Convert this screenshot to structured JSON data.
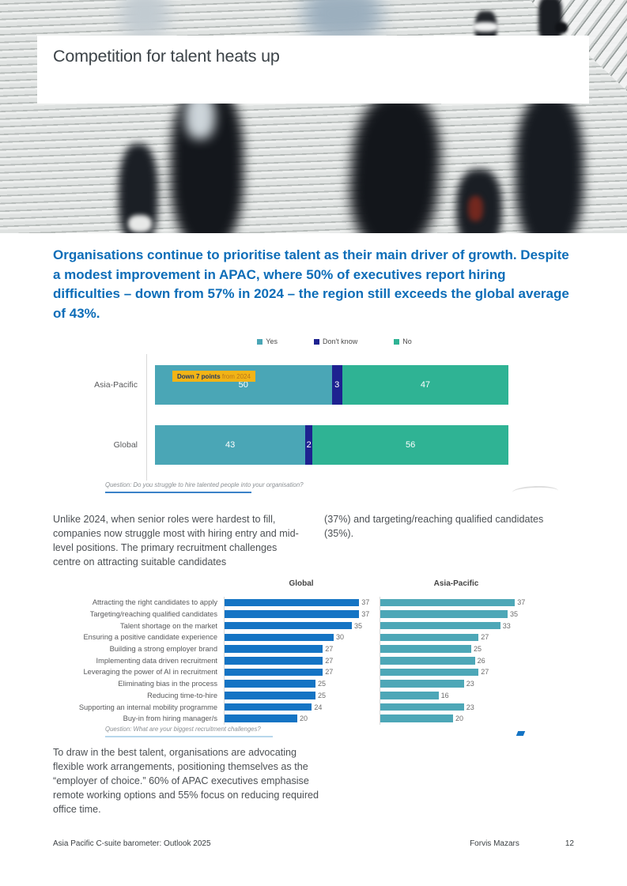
{
  "title": "Competition for talent heats up",
  "lead": "Organisations continue to prioritise talent as their main driver of growth. Despite a modest improvement in APAC, where 50% of executives report hiring difficulties – down from 57% in 2024 – the region still exceeds the global average of 43%.",
  "colors": {
    "accent_blue": "#0d6db8",
    "yes": "#4aa6b6",
    "dont_know": "#1e2290",
    "no": "#2fb394",
    "global_bar": "#1474c4",
    "apac_bar": "#4da7b7",
    "badge_bg": "#f2b416"
  },
  "chart_data": [
    {
      "type": "bar",
      "variant": "horizontal-stacked",
      "title": "",
      "categories": [
        "Asia-Pacific",
        "Global"
      ],
      "series": [
        {
          "name": "Yes",
          "color": "#4aa6b6",
          "values": [
            50,
            43
          ]
        },
        {
          "name": "Don't know",
          "color": "#1e2290",
          "values": [
            3,
            2
          ]
        },
        {
          "name": "No",
          "color": "#2fb394",
          "values": [
            47,
            56
          ]
        }
      ],
      "xlim": [
        0,
        100
      ],
      "legend_position": "top",
      "annotation": {
        "bold": "Down 7 points",
        "rest": " from 2024"
      },
      "question": "Question: Do you struggle to hire talented people into your organisation?"
    },
    {
      "type": "bar",
      "variant": "horizontal",
      "title": "Global",
      "color": "#1474c4",
      "categories": [
        "Attracting the right candidates to apply",
        "Targeting/reaching qualified candidates",
        "Talent shortage on the market",
        "Ensuring a positive candidate experience",
        "Building a strong employer brand",
        "Implementing data driven recruitment",
        "Leveraging the power of AI in recruitment",
        "Eliminating bias in the process",
        "Reducing time-to-hire",
        "Supporting an internal mobility programme",
        "Buy-in from hiring manager/s"
      ],
      "values": [
        37,
        37,
        35,
        30,
        27,
        27,
        27,
        25,
        25,
        24,
        20
      ]
    },
    {
      "type": "bar",
      "variant": "horizontal",
      "title": "Asia-Pacific",
      "color": "#4da7b7",
      "categories": [
        "Attracting the right candidates to apply",
        "Targeting/reaching qualified candidates",
        "Talent shortage on the market",
        "Ensuring a positive candidate experience",
        "Building a strong employer brand",
        "Implementing data driven recruitment",
        "Leveraging the power of AI in recruitment",
        "Eliminating bias in the process",
        "Reducing time-to-hire",
        "Supporting an internal mobility programme",
        "Buy-in from hiring manager/s"
      ],
      "values": [
        37,
        35,
        33,
        27,
        25,
        26,
        27,
        23,
        16,
        23,
        20
      ],
      "question": "Question: What are your biggest recruitment challenges?"
    }
  ],
  "body": {
    "col_left": "Unlike 2024, when senior roles were hardest to fill, companies now struggle most with hiring entry and mid-level positions. The primary recruitment challenges centre on attracting suitable candidates",
    "col_right": "(37%) and targeting/reaching qualified candidates (35%).",
    "bottom": "To draw in the best talent, organisations are advocating flexible work arrangements, positioning themselves as the “employer of choice.” 60% of APAC executives emphasise remote working options and 55% focus on reducing required office time."
  },
  "footer": {
    "left": "Asia Pacific C-suite barometer: Outlook 2025",
    "brand": "Forvis Mazars",
    "page_number": "12"
  }
}
